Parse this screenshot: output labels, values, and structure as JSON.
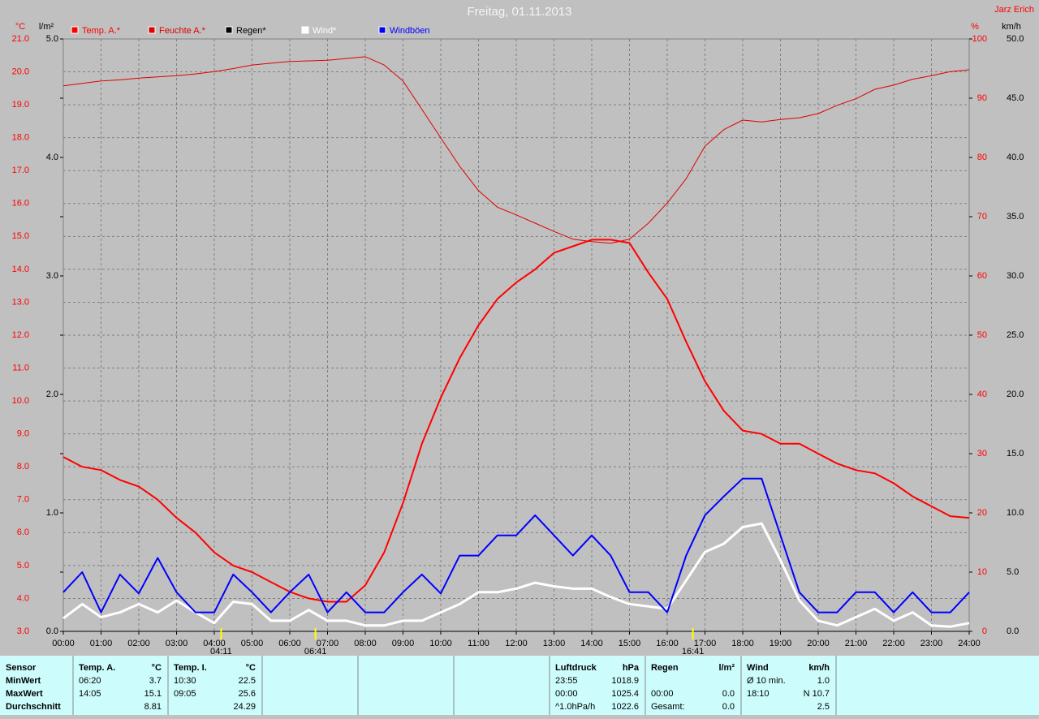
{
  "chart_data": {
    "type": "line",
    "title": "Freitag, 01.11.2013",
    "author": "Jarz Erich",
    "axis_labels": {
      "y": "°C",
      "y2": "l/m²",
      "y3": "%",
      "y4": "km/h"
    },
    "x": [
      0,
      0.5,
      1,
      1.5,
      2,
      2.5,
      3,
      3.5,
      4,
      4.5,
      5,
      5.5,
      6,
      6.5,
      7,
      7.5,
      8,
      8.5,
      9,
      9.5,
      10,
      10.5,
      11,
      11.5,
      12,
      12.5,
      13,
      13.5,
      14,
      14.5,
      15,
      15.5,
      16,
      16.5,
      17,
      17.5,
      18,
      18.5,
      19,
      19.5,
      20,
      20.5,
      21,
      21.5,
      22,
      22.5,
      23,
      23.5,
      24
    ],
    "xlim": [
      0,
      24
    ],
    "xticks": [
      {
        "value": 0,
        "label": "00:00"
      },
      {
        "value": 1,
        "label": "01:00"
      },
      {
        "value": 2,
        "label": "02:00"
      },
      {
        "value": 3,
        "label": "03:00"
      },
      {
        "value": 4,
        "label": "04:00"
      },
      {
        "value": 5,
        "label": "05:00"
      },
      {
        "value": 6,
        "label": "06:00"
      },
      {
        "value": 7,
        "label": "07:00"
      },
      {
        "value": 8,
        "label": "08:00"
      },
      {
        "value": 9,
        "label": "09:00"
      },
      {
        "value": 10,
        "label": "10:00"
      },
      {
        "value": 11,
        "label": "11:00"
      },
      {
        "value": 12,
        "label": "12:00"
      },
      {
        "value": 13,
        "label": "13:00"
      },
      {
        "value": 14,
        "label": "14:00"
      },
      {
        "value": 15,
        "label": "15:00"
      },
      {
        "value": 16,
        "label": "16:00"
      },
      {
        "value": 17,
        "label": "17:00"
      },
      {
        "value": 18,
        "label": "18:00"
      },
      {
        "value": 19,
        "label": "19:00"
      },
      {
        "value": 20,
        "label": "20:00"
      },
      {
        "value": 21,
        "label": "21:00"
      },
      {
        "value": 22,
        "label": "22:00"
      },
      {
        "value": 23,
        "label": "23:00"
      },
      {
        "value": 24,
        "label": "24:00"
      }
    ],
    "ylim": [
      3,
      21
    ],
    "yticks": [
      {
        "value": 3,
        "label": "3.0"
      },
      {
        "value": 4,
        "label": "4.0"
      },
      {
        "value": 5,
        "label": "5.0"
      },
      {
        "value": 6,
        "label": "6.0"
      },
      {
        "value": 7,
        "label": "7.0"
      },
      {
        "value": 8,
        "label": "8.0"
      },
      {
        "value": 9,
        "label": "9.0"
      },
      {
        "value": 10,
        "label": "10.0"
      },
      {
        "value": 11,
        "label": "11.0"
      },
      {
        "value": 12,
        "label": "12.0"
      },
      {
        "value": 13,
        "label": "13.0"
      },
      {
        "value": 14,
        "label": "14.0"
      },
      {
        "value": 15,
        "label": "15.0"
      },
      {
        "value": 16,
        "label": "16.0"
      },
      {
        "value": 17,
        "label": "17.0"
      },
      {
        "value": 18,
        "label": "18.0"
      },
      {
        "value": 19,
        "label": "19.0"
      },
      {
        "value": 20,
        "label": "20.0"
      },
      {
        "value": 21,
        "label": "21.0"
      }
    ],
    "y2lim": [
      0,
      5
    ],
    "y2ticks": [
      {
        "value": 0,
        "label": "0.0"
      },
      {
        "value": 1,
        "label": "1.0"
      },
      {
        "value": 2,
        "label": "2.0"
      },
      {
        "value": 3,
        "label": "3.0"
      },
      {
        "value": 4,
        "label": "4.0"
      },
      {
        "value": 5,
        "label": "5.0"
      }
    ],
    "y3lim": [
      0,
      100
    ],
    "y3ticks": [
      0,
      10,
      20,
      30,
      40,
      50,
      60,
      70,
      80,
      90,
      100
    ],
    "y4lim": [
      0,
      50
    ],
    "y4ticks": [
      {
        "value": 0,
        "label": "0.0"
      },
      {
        "value": 5,
        "label": "5.0"
      },
      {
        "value": 10,
        "label": "10.0"
      },
      {
        "value": 15,
        "label": "15.0"
      },
      {
        "value": 20,
        "label": "20.0"
      },
      {
        "value": 25,
        "label": "25.0"
      },
      {
        "value": 30,
        "label": "30.0"
      },
      {
        "value": 35,
        "label": "35.0"
      },
      {
        "value": 40,
        "label": "40.0"
      },
      {
        "value": 45,
        "label": "45.0"
      },
      {
        "value": 50,
        "label": "50.0"
      }
    ],
    "grid": true,
    "series": [
      {
        "name": "Temp. A.*",
        "color": "#ff0000",
        "axis": "y",
        "values": [
          8.3,
          8.0,
          7.9,
          7.6,
          7.4,
          7.0,
          6.45,
          6.0,
          5.4,
          5.0,
          4.8,
          4.5,
          4.2,
          4.0,
          3.9,
          3.9,
          4.4,
          5.4,
          6.9,
          8.7,
          10.1,
          11.3,
          12.3,
          13.1,
          13.6,
          14.0,
          14.5,
          14.7,
          14.9,
          14.9,
          14.8,
          13.9,
          13.1,
          11.8,
          10.6,
          9.7,
          9.1,
          9.0,
          8.7,
          8.7,
          8.4,
          8.1,
          7.9,
          7.8,
          7.5,
          7.1,
          6.8,
          6.5,
          6.45
        ]
      },
      {
        "name": "Feuchte A.*",
        "color": "#e00000",
        "axis": "y3",
        "values": [
          92.1,
          92.5,
          92.9,
          93.1,
          93.4,
          93.6,
          93.8,
          94.1,
          94.5,
          95.0,
          95.6,
          95.9,
          96.2,
          96.3,
          96.4,
          96.7,
          97.0,
          95.6,
          92.9,
          88.1,
          83.3,
          78.5,
          74.4,
          71.6,
          70.3,
          68.9,
          67.5,
          66.2,
          65.8,
          65.5,
          66.2,
          68.9,
          72.3,
          76.4,
          81.9,
          84.7,
          86.3,
          86.0,
          86.4,
          86.7,
          87.4,
          88.8,
          89.9,
          91.5,
          92.2,
          93.2,
          93.8,
          94.5,
          94.8
        ]
      },
      {
        "name": "Regen*",
        "color": "#000000",
        "axis": "y2",
        "values": [
          0,
          0,
          0,
          0,
          0,
          0,
          0,
          0,
          0,
          0,
          0,
          0,
          0,
          0,
          0,
          0,
          0,
          0,
          0,
          0,
          0,
          0,
          0,
          0,
          0,
          0,
          0,
          0,
          0,
          0,
          0,
          0,
          0,
          0,
          0,
          0,
          0,
          0,
          0,
          0,
          0,
          0,
          0,
          0,
          0,
          0,
          0,
          0,
          0
        ]
      },
      {
        "name": "Wind*",
        "color": "#ffffff",
        "axis": "y4",
        "values": [
          1.1,
          2.3,
          1.2,
          1.6,
          2.3,
          1.6,
          2.6,
          1.6,
          0.7,
          2.5,
          2.3,
          0.9,
          0.9,
          1.8,
          0.9,
          0.9,
          0.5,
          0.5,
          0.9,
          0.9,
          1.6,
          2.3,
          3.3,
          3.3,
          3.6,
          4.1,
          3.8,
          3.6,
          3.6,
          2.9,
          2.3,
          2.1,
          1.9,
          4.3,
          6.7,
          7.4,
          8.8,
          9.1,
          6.0,
          2.6,
          0.9,
          0.5,
          1.2,
          1.9,
          0.9,
          1.6,
          0.5,
          0.4,
          0.7
        ]
      },
      {
        "name": "Windböen",
        "color": "#0000ff",
        "axis": "y4",
        "values": [
          3.3,
          5.0,
          1.6,
          4.8,
          3.2,
          6.2,
          3.3,
          1.6,
          1.6,
          4.8,
          3.3,
          1.6,
          3.3,
          4.8,
          1.6,
          3.3,
          1.6,
          1.6,
          3.3,
          4.8,
          3.2,
          6.4,
          6.4,
          8.1,
          8.1,
          9.8,
          8.1,
          6.4,
          8.1,
          6.4,
          3.3,
          3.3,
          1.6,
          6.4,
          9.8,
          11.4,
          12.9,
          12.9,
          8.1,
          3.3,
          1.6,
          1.6,
          3.3,
          3.3,
          1.6,
          3.3,
          1.6,
          1.6,
          3.3
        ]
      }
    ],
    "annotations": [
      {
        "text": "04:11",
        "x": 4.18
      },
      {
        "text": "06:41",
        "x": 6.68
      },
      {
        "text": "16:41",
        "x": 16.68
      }
    ]
  },
  "table": {
    "panels": [
      {
        "header": [
          "Sensor"
        ],
        "rows": [
          [
            "MinWert"
          ],
          [
            "MaxWert"
          ],
          [
            "Durchschnitt"
          ]
        ]
      },
      {
        "header": [
          "Temp. A.",
          "°C"
        ],
        "rows": [
          [
            "06:20",
            "3.7"
          ],
          [
            "14:05",
            "15.1"
          ],
          [
            null,
            "8.81"
          ]
        ]
      },
      {
        "header": [
          "Temp. I.",
          "°C"
        ],
        "rows": [
          [
            "10:30",
            "22.5"
          ],
          [
            "09:05",
            "25.6"
          ],
          [
            null,
            "24.29"
          ]
        ]
      },
      {
        "header": [
          "Luftdruck",
          "hPa"
        ],
        "rows": [
          [
            "23:55",
            "1018.9"
          ],
          [
            "00:00",
            "1025.4"
          ],
          [
            "^1.0hPa/h",
            "1022.6"
          ]
        ]
      },
      {
        "header": [
          "Regen",
          "l/m²"
        ],
        "rows": [
          [
            null,
            null
          ],
          [
            "00:00",
            "0.0"
          ],
          [
            "Gesamt:",
            "0.0"
          ]
        ]
      },
      {
        "header": [
          "Wind",
          "km/h"
        ],
        "rows": [
          [
            "Ø 10 min.",
            "1.0"
          ],
          [
            "18:10",
            "N 10.7"
          ],
          [
            null,
            "2.5"
          ]
        ]
      }
    ]
  }
}
